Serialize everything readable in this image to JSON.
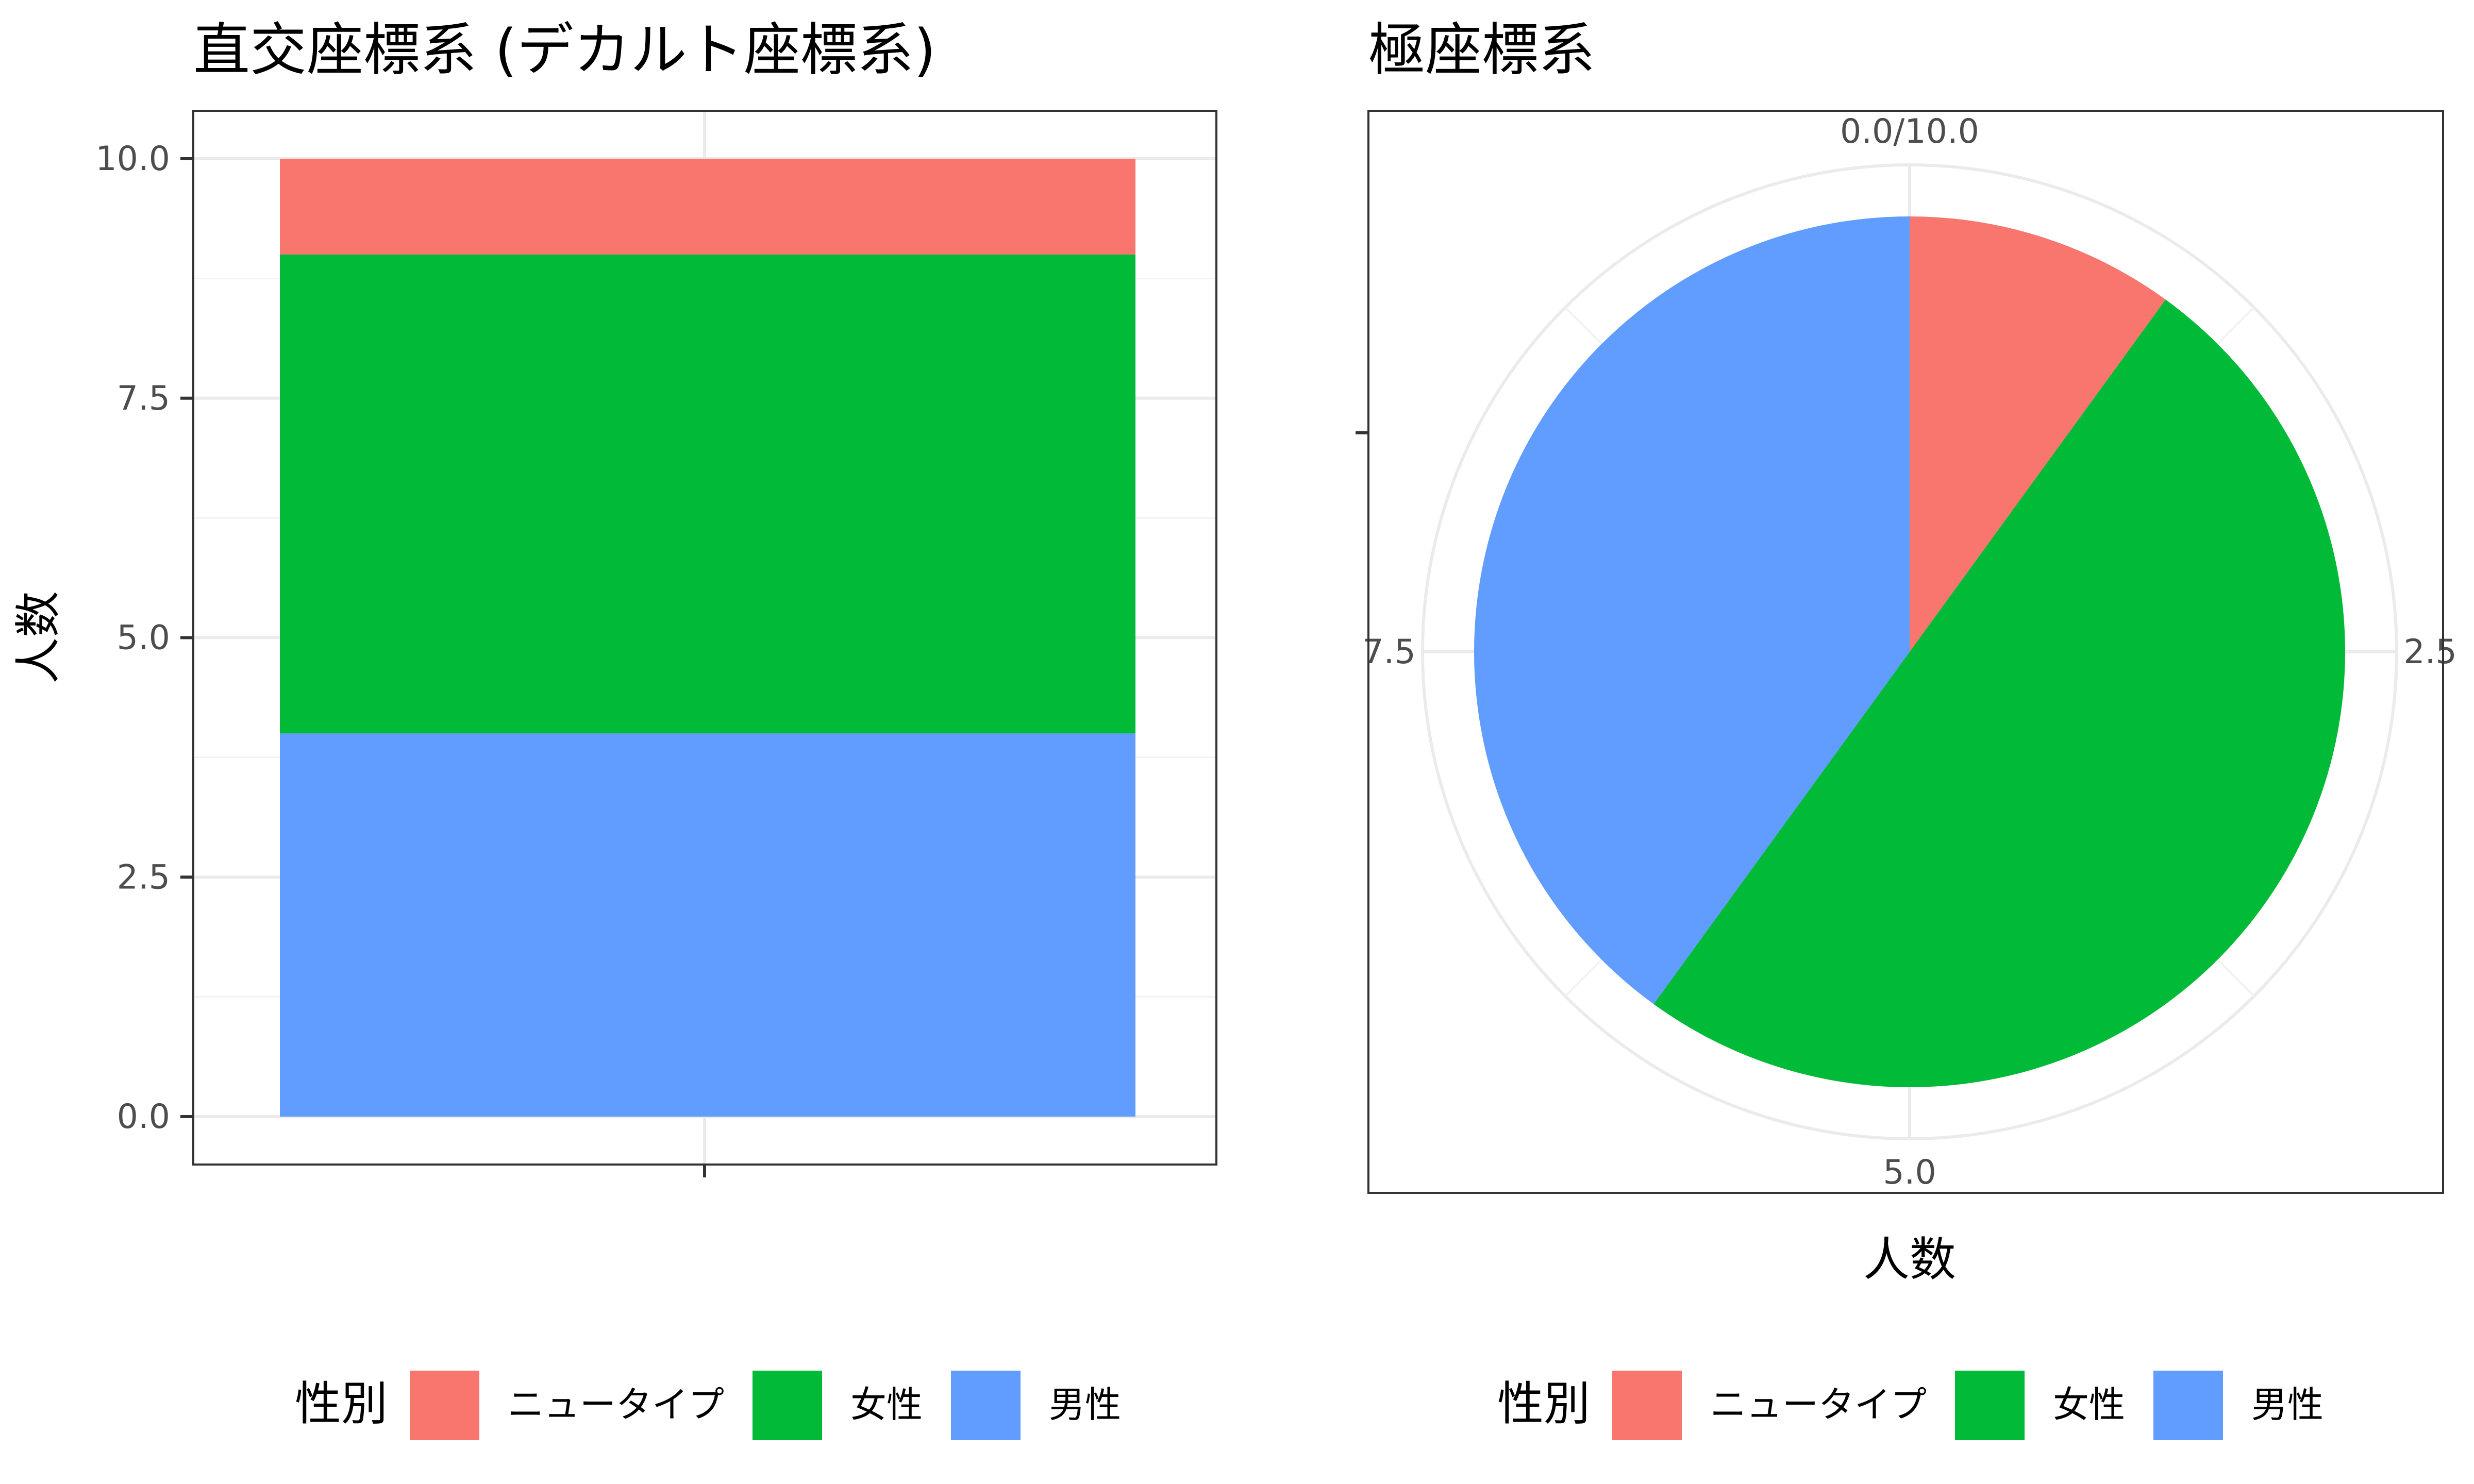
{
  "chart_data": [
    {
      "type": "bar",
      "title": "直交座標系 (デカルト座標系)",
      "xlabel": "",
      "ylabel": "人数",
      "stacked": true,
      "categories": [
        ""
      ],
      "series": [
        {
          "name": "ニュータイプ",
          "values": [
            1
          ],
          "color": "#F8766D"
        },
        {
          "name": "女性",
          "values": [
            5
          ],
          "color": "#00BA38"
        },
        {
          "name": "男性",
          "values": [
            4
          ],
          "color": "#619CFF"
        }
      ],
      "stack_order_bottom_to_top": [
        "男性",
        "女性",
        "ニュータイプ"
      ],
      "ylim": [
        0,
        10
      ],
      "yticks": [
        0,
        2.5,
        5,
        7.5,
        10
      ],
      "ytick_labels": [
        "0.0",
        "2.5",
        "5.0",
        "7.5",
        "10.0"
      ],
      "grid": true,
      "legend": {
        "title": "性別",
        "placement": "bottom",
        "entries": [
          "ニュータイプ",
          "女性",
          "男性"
        ]
      }
    },
    {
      "type": "pie",
      "title": "極座標系",
      "xlabel": "人数",
      "ylabel": "",
      "labels": [
        "ニュータイプ",
        "女性",
        "男性"
      ],
      "values": [
        1,
        5,
        4
      ],
      "colors": [
        "#F8766D",
        "#00BA38",
        "#619CFF"
      ],
      "total": 10,
      "angular_ticks": [
        0,
        2.5,
        5,
        7.5
      ],
      "angular_tick_labels": [
        "0.0/10.0",
        "2.5",
        "5.0",
        "7.5"
      ],
      "grid": true,
      "legend": {
        "title": "性別",
        "placement": "bottom",
        "entries": [
          "ニュータイプ",
          "女性",
          "男性"
        ]
      }
    }
  ]
}
